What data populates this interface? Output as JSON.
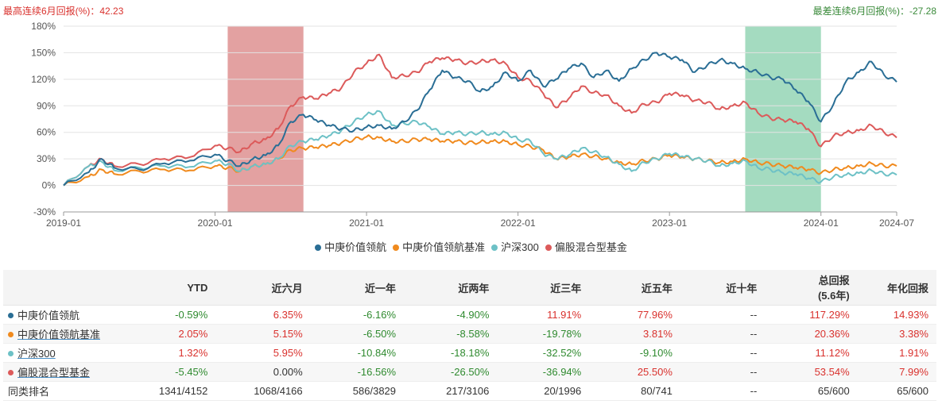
{
  "header": {
    "max_label": "最高连续6月回报(%)：42.23",
    "min_label": "最差连续6月回报(%)：-27.28"
  },
  "colors": {
    "fund": "#2a6e95",
    "benchmark": "#f08a1e",
    "hs300": "#6dc1c6",
    "category": "#dc5a5a",
    "max_band": "#e29c9c",
    "min_band": "#9fd9bd"
  },
  "chart_data": {
    "type": "line",
    "x_tick_labels": [
      "2019-01",
      "2020-01",
      "2021-01",
      "2022-01",
      "2023-01",
      "2024-01",
      "2024-07"
    ],
    "ylim": [
      -30,
      180
    ],
    "y_ticks": [
      -30,
      0,
      30,
      60,
      90,
      120,
      150,
      180
    ],
    "y_tick_labels": [
      "-30%",
      "0%",
      "30%",
      "60%",
      "90%",
      "120%",
      "150%",
      "180%"
    ],
    "grid": true,
    "legend_position": "bottom",
    "highlight_bands": [
      {
        "label": "max",
        "start": "2020-02",
        "end": "2020-08"
      },
      {
        "label": "min",
        "start": "2023-07",
        "end": "2024-01"
      }
    ],
    "series": [
      {
        "name": "中庚价值领航",
        "color": "#2a6e95",
        "points": [
          [
            "2019-01",
            0
          ],
          [
            "2019-03",
            15
          ],
          [
            "2019-04",
            30
          ],
          [
            "2019-05",
            20
          ],
          [
            "2019-07",
            18
          ],
          [
            "2019-09",
            25
          ],
          [
            "2019-11",
            28
          ],
          [
            "2020-01",
            35
          ],
          [
            "2020-02",
            28
          ],
          [
            "2020-03",
            22
          ],
          [
            "2020-04",
            30
          ],
          [
            "2020-05",
            34
          ],
          [
            "2020-06",
            45
          ],
          [
            "2020-07",
            72
          ],
          [
            "2020-08",
            80
          ],
          [
            "2020-09",
            74
          ],
          [
            "2020-10",
            68
          ],
          [
            "2020-11",
            64
          ],
          [
            "2020-12",
            62
          ],
          [
            "2021-01",
            66
          ],
          [
            "2021-02",
            68
          ],
          [
            "2021-03",
            64
          ],
          [
            "2021-04",
            72
          ],
          [
            "2021-05",
            85
          ],
          [
            "2021-06",
            108
          ],
          [
            "2021-07",
            130
          ],
          [
            "2021-08",
            122
          ],
          [
            "2021-09",
            118
          ],
          [
            "2021-10",
            106
          ],
          [
            "2021-11",
            112
          ],
          [
            "2021-12",
            128
          ],
          [
            "2022-01",
            118
          ],
          [
            "2022-02",
            130
          ],
          [
            "2022-03",
            112
          ],
          [
            "2022-04",
            120
          ],
          [
            "2022-05",
            132
          ],
          [
            "2022-06",
            138
          ],
          [
            "2022-07",
            122
          ],
          [
            "2022-08",
            130
          ],
          [
            "2022-09",
            118
          ],
          [
            "2022-10",
            132
          ],
          [
            "2022-11",
            142
          ],
          [
            "2022-12",
            150
          ],
          [
            "2023-01",
            145
          ],
          [
            "2023-02",
            142
          ],
          [
            "2023-03",
            128
          ],
          [
            "2023-04",
            136
          ],
          [
            "2023-05",
            142
          ],
          [
            "2023-06",
            138
          ],
          [
            "2023-07",
            132
          ],
          [
            "2023-08",
            128
          ],
          [
            "2023-09",
            122
          ],
          [
            "2023-10",
            120
          ],
          [
            "2023-11",
            108
          ],
          [
            "2023-12",
            95
          ],
          [
            "2024-01",
            72
          ],
          [
            "2024-02",
            92
          ],
          [
            "2024-03",
            118
          ],
          [
            "2024-04",
            128
          ],
          [
            "2024-05",
            140
          ],
          [
            "2024-06",
            125
          ],
          [
            "2024-07",
            117
          ]
        ]
      },
      {
        "name": "中庚价值领航基准",
        "color": "#f08a1e",
        "points": [
          [
            "2019-01",
            0
          ],
          [
            "2019-03",
            10
          ],
          [
            "2019-04",
            18
          ],
          [
            "2019-05",
            13
          ],
          [
            "2019-07",
            16
          ],
          [
            "2019-09",
            18
          ],
          [
            "2019-11",
            17
          ],
          [
            "2020-01",
            22
          ],
          [
            "2020-02",
            20
          ],
          [
            "2020-03",
            16
          ],
          [
            "2020-04",
            22
          ],
          [
            "2020-05",
            24
          ],
          [
            "2020-06",
            30
          ],
          [
            "2020-07",
            40
          ],
          [
            "2020-08",
            42
          ],
          [
            "2020-09",
            43
          ],
          [
            "2020-10",
            45
          ],
          [
            "2020-11",
            48
          ],
          [
            "2020-12",
            52
          ],
          [
            "2021-01",
            55
          ],
          [
            "2021-02",
            54
          ],
          [
            "2021-03",
            50
          ],
          [
            "2021-04",
            50
          ],
          [
            "2021-05",
            52
          ],
          [
            "2021-06",
            52
          ],
          [
            "2021-07",
            50
          ],
          [
            "2021-08",
            50
          ],
          [
            "2021-09",
            48
          ],
          [
            "2021-10",
            49
          ],
          [
            "2021-11",
            50
          ],
          [
            "2021-12",
            50
          ],
          [
            "2022-01",
            46
          ],
          [
            "2022-02",
            44
          ],
          [
            "2022-03",
            40
          ],
          [
            "2022-04",
            30
          ],
          [
            "2022-05",
            32
          ],
          [
            "2022-06",
            35
          ],
          [
            "2022-07",
            33
          ],
          [
            "2022-08",
            30
          ],
          [
            "2022-09",
            26
          ],
          [
            "2022-10",
            24
          ],
          [
            "2022-11",
            28
          ],
          [
            "2022-12",
            30
          ],
          [
            "2023-01",
            34
          ],
          [
            "2023-02",
            32
          ],
          [
            "2023-03",
            30
          ],
          [
            "2023-04",
            28
          ],
          [
            "2023-05",
            26
          ],
          [
            "2023-06",
            27
          ],
          [
            "2023-07",
            30
          ],
          [
            "2023-08",
            26
          ],
          [
            "2023-09",
            24
          ],
          [
            "2023-10",
            22
          ],
          [
            "2023-11",
            20
          ],
          [
            "2023-12",
            18
          ],
          [
            "2024-01",
            14
          ],
          [
            "2024-02",
            18
          ],
          [
            "2024-03",
            20
          ],
          [
            "2024-04",
            22
          ],
          [
            "2024-05",
            25
          ],
          [
            "2024-06",
            22
          ],
          [
            "2024-07",
            22
          ]
        ]
      },
      {
        "name": "沪深300",
        "color": "#6dc1c6",
        "points": [
          [
            "2019-01",
            0
          ],
          [
            "2019-03",
            22
          ],
          [
            "2019-04",
            27
          ],
          [
            "2019-05",
            17
          ],
          [
            "2019-07",
            20
          ],
          [
            "2019-09",
            22
          ],
          [
            "2019-11",
            21
          ],
          [
            "2020-01",
            28
          ],
          [
            "2020-02",
            24
          ],
          [
            "2020-03",
            16
          ],
          [
            "2020-04",
            22
          ],
          [
            "2020-05",
            24
          ],
          [
            "2020-06",
            30
          ],
          [
            "2020-07",
            45
          ],
          [
            "2020-08",
            50
          ],
          [
            "2020-09",
            52
          ],
          [
            "2020-10",
            56
          ],
          [
            "2020-11",
            62
          ],
          [
            "2020-12",
            72
          ],
          [
            "2021-01",
            80
          ],
          [
            "2021-02",
            84
          ],
          [
            "2021-03",
            68
          ],
          [
            "2021-04",
            70
          ],
          [
            "2021-05",
            72
          ],
          [
            "2021-06",
            66
          ],
          [
            "2021-07",
            58
          ],
          [
            "2021-08",
            60
          ],
          [
            "2021-09",
            58
          ],
          [
            "2021-10",
            60
          ],
          [
            "2021-11",
            58
          ],
          [
            "2021-12",
            60
          ],
          [
            "2022-01",
            52
          ],
          [
            "2022-02",
            50
          ],
          [
            "2022-03",
            36
          ],
          [
            "2022-04",
            30
          ],
          [
            "2022-05",
            34
          ],
          [
            "2022-06",
            42
          ],
          [
            "2022-07",
            38
          ],
          [
            "2022-08",
            32
          ],
          [
            "2022-09",
            24
          ],
          [
            "2022-10",
            16
          ],
          [
            "2022-11",
            26
          ],
          [
            "2022-12",
            30
          ],
          [
            "2023-01",
            36
          ],
          [
            "2023-02",
            33
          ],
          [
            "2023-03",
            30
          ],
          [
            "2023-04",
            28
          ],
          [
            "2023-05",
            22
          ],
          [
            "2023-06",
            25
          ],
          [
            "2023-07",
            28
          ],
          [
            "2023-08",
            20
          ],
          [
            "2023-09",
            18
          ],
          [
            "2023-10",
            14
          ],
          [
            "2023-11",
            13
          ],
          [
            "2023-12",
            8
          ],
          [
            "2024-01",
            4
          ],
          [
            "2024-02",
            10
          ],
          [
            "2024-03",
            12
          ],
          [
            "2024-04",
            14
          ],
          [
            "2024-05",
            17
          ],
          [
            "2024-06",
            13
          ],
          [
            "2024-07",
            12
          ]
        ]
      },
      {
        "name": "偏股混合型基金",
        "color": "#dc5a5a",
        "points": [
          [
            "2019-01",
            0
          ],
          [
            "2019-03",
            22
          ],
          [
            "2019-04",
            30
          ],
          [
            "2019-05",
            22
          ],
          [
            "2019-07",
            24
          ],
          [
            "2019-09",
            30
          ],
          [
            "2019-11",
            32
          ],
          [
            "2020-01",
            45
          ],
          [
            "2020-02",
            42
          ],
          [
            "2020-03",
            38
          ],
          [
            "2020-04",
            48
          ],
          [
            "2020-05",
            52
          ],
          [
            "2020-06",
            64
          ],
          [
            "2020-07",
            90
          ],
          [
            "2020-08",
            100
          ],
          [
            "2020-09",
            98
          ],
          [
            "2020-10",
            104
          ],
          [
            "2020-11",
            110
          ],
          [
            "2020-12",
            128
          ],
          [
            "2021-01",
            138
          ],
          [
            "2021-02",
            148
          ],
          [
            "2021-03",
            122
          ],
          [
            "2021-04",
            124
          ],
          [
            "2021-05",
            128
          ],
          [
            "2021-06",
            140
          ],
          [
            "2021-07",
            144
          ],
          [
            "2021-08",
            142
          ],
          [
            "2021-09",
            138
          ],
          [
            "2021-10",
            140
          ],
          [
            "2021-11",
            142
          ],
          [
            "2021-12",
            138
          ],
          [
            "2022-01",
            122
          ],
          [
            "2022-02",
            118
          ],
          [
            "2022-03",
            104
          ],
          [
            "2022-04",
            88
          ],
          [
            "2022-05",
            98
          ],
          [
            "2022-06",
            112
          ],
          [
            "2022-07",
            105
          ],
          [
            "2022-08",
            102
          ],
          [
            "2022-09",
            90
          ],
          [
            "2022-10",
            82
          ],
          [
            "2022-11",
            92
          ],
          [
            "2022-12",
            94
          ],
          [
            "2023-01",
            104
          ],
          [
            "2023-02",
            102
          ],
          [
            "2023-03",
            96
          ],
          [
            "2023-04",
            94
          ],
          [
            "2023-05",
            86
          ],
          [
            "2023-06",
            90
          ],
          [
            "2023-07",
            94
          ],
          [
            "2023-08",
            82
          ],
          [
            "2023-09",
            76
          ],
          [
            "2023-10",
            74
          ],
          [
            "2023-11",
            72
          ],
          [
            "2023-12",
            64
          ],
          [
            "2024-01",
            44
          ],
          [
            "2024-02",
            56
          ],
          [
            "2024-03",
            60
          ],
          [
            "2024-04",
            62
          ],
          [
            "2024-05",
            68
          ],
          [
            "2024-06",
            60
          ],
          [
            "2024-07",
            54
          ]
        ]
      }
    ]
  },
  "table": {
    "headers": [
      "",
      "YTD",
      "近六月",
      "近一年",
      "近两年",
      "近三年",
      "近五年",
      "近十年",
      "总回报",
      "年化回报"
    ],
    "total_sub": "(5.6年)",
    "rows": [
      {
        "name": "中庚价值领航",
        "color": "#2a6e95",
        "values": [
          "-0.59%",
          "6.35%",
          "-6.16%",
          "-4.90%",
          "11.91%",
          "77.96%",
          "--",
          "117.29%",
          "14.93%"
        ],
        "signs": [
          "neg",
          "pos",
          "neg",
          "neg",
          "pos",
          "pos",
          "neu",
          "pos",
          "pos"
        ]
      },
      {
        "name": "中庚价值领航基准",
        "color": "#f08a1e",
        "values": [
          "2.05%",
          "5.15%",
          "-6.50%",
          "-8.58%",
          "-19.78%",
          "3.81%",
          "--",
          "20.36%",
          "3.38%"
        ],
        "signs": [
          "pos",
          "pos",
          "neg",
          "neg",
          "neg",
          "pos",
          "neu",
          "pos",
          "pos"
        ]
      },
      {
        "name": "沪深300",
        "color": "#6dc1c6",
        "values": [
          "1.32%",
          "5.95%",
          "-10.84%",
          "-18.18%",
          "-32.52%",
          "-9.10%",
          "--",
          "11.12%",
          "1.91%"
        ],
        "signs": [
          "pos",
          "pos",
          "neg",
          "neg",
          "neg",
          "neg",
          "neu",
          "pos",
          "pos"
        ]
      },
      {
        "name": "偏股混合型基金",
        "color": "#dc5a5a",
        "values": [
          "-5.45%",
          "0.00%",
          "-16.56%",
          "-26.50%",
          "-36.94%",
          "25.50%",
          "--",
          "53.54%",
          "7.99%"
        ],
        "signs": [
          "neg",
          "neu",
          "neg",
          "neg",
          "neg",
          "pos",
          "neu",
          "pos",
          "pos"
        ]
      },
      {
        "name": "同类排名",
        "color": "",
        "values": [
          "1341/4152",
          "1068/4166",
          "586/3829",
          "217/3106",
          "20/1996",
          "80/741",
          "--",
          "65/600",
          "65/600"
        ],
        "signs": [
          "neu",
          "neu",
          "neu",
          "neu",
          "neu",
          "neu",
          "neu",
          "neu",
          "neu"
        ]
      }
    ]
  }
}
